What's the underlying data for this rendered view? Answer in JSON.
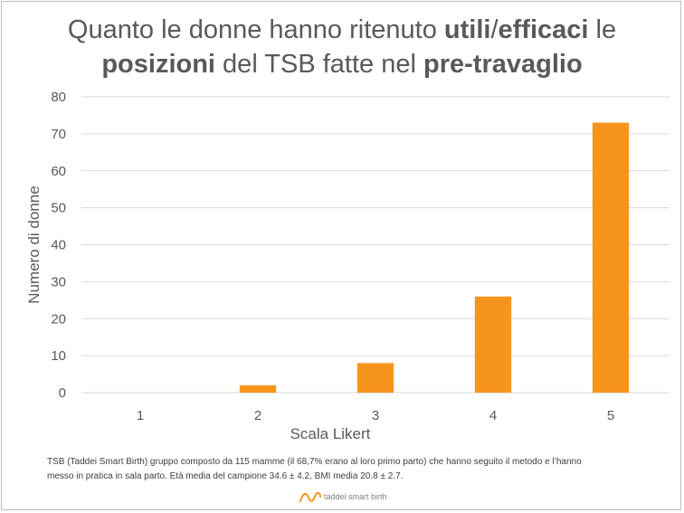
{
  "title": {
    "parts": [
      {
        "text": "Quanto le donne hanno ritenuto ",
        "bold": false
      },
      {
        "text": "utili",
        "bold": true
      },
      {
        "text": "/",
        "bold": false
      },
      {
        "text": "efficaci",
        "bold": true
      },
      {
        "text": " le",
        "bold": false
      },
      {
        "break": true
      },
      {
        "text": "posizioni",
        "bold": true
      },
      {
        "text": " del TSB fatte nel ",
        "bold": false
      },
      {
        "text": "pre-travaglio",
        "bold": true
      }
    ]
  },
  "chart_data": {
    "type": "bar",
    "categories": [
      "1",
      "2",
      "3",
      "4",
      "5"
    ],
    "values": [
      0,
      2,
      8,
      26,
      73
    ],
    "xlabel": "Scala Likert",
    "ylabel": "Numero di donne",
    "ylim": [
      0,
      80
    ],
    "yticks": [
      0,
      10,
      20,
      30,
      40,
      50,
      60,
      70,
      80
    ],
    "grid": true,
    "legend": "none",
    "bar_color": "#f7941d",
    "grid_color": "#d9d9d9",
    "axis_text_color": "#595959"
  },
  "caption": {
    "line1": "TSB (Taddei Smart Birth) gruppo composto da 115 mamme (il 68,7% erano al loro primo parto) che hanno seguito il metodo e l’hanno",
    "line2": "messo in pratica in sala parto. Età media del campione 34.6 ± 4.2, BMI media 20.8 ± 2.7."
  },
  "logo": {
    "text": "taddei smart birth",
    "color": "#f7941d"
  }
}
